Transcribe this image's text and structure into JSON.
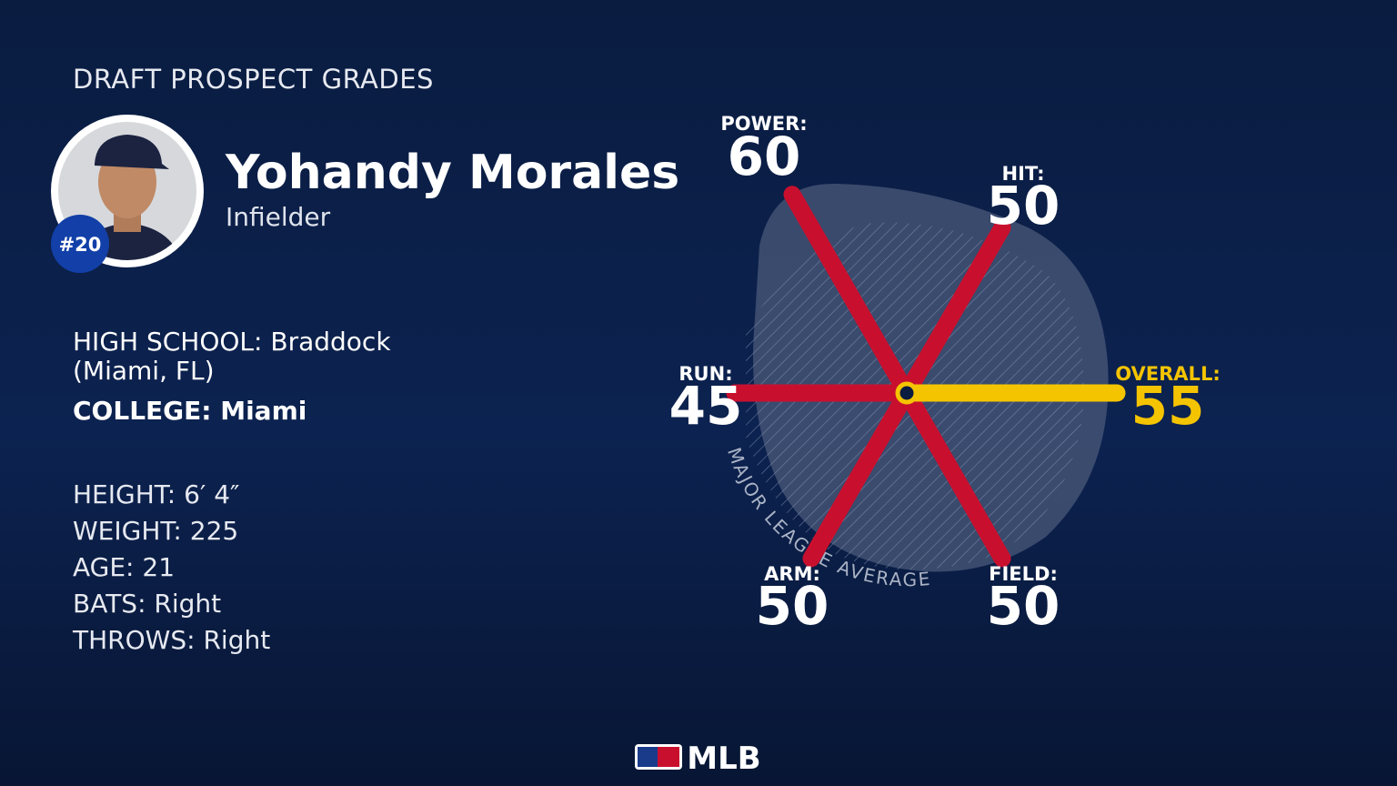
{
  "header": "DRAFT PROSPECT GRADES",
  "player": {
    "name": "Yohandy Morales",
    "position": "Infielder",
    "rank": "#20"
  },
  "school": [
    {
      "label": "HIGH SCHOOL:",
      "value": "Braddock (Miami, FL)"
    },
    {
      "label": "COLLEGE:",
      "value": "Miami"
    }
  ],
  "bio": [
    {
      "label": "HEIGHT:",
      "value": "6′ 4″"
    },
    {
      "label": "WEIGHT:",
      "value": 225
    },
    {
      "label": "AGE:",
      "value": 21
    },
    {
      "label": "BATS:",
      "value": "Right"
    },
    {
      "label": "THROWS:",
      "value": "Right"
    }
  ],
  "grades": [
    {
      "label": "POWER:",
      "value": 60,
      "color": "#c8102e"
    },
    {
      "label": "HIT:",
      "value": 50,
      "color": "#c8102e"
    },
    {
      "label": "RUN:",
      "value": 45,
      "color": "#c8102e"
    },
    {
      "label": "OVERALL:",
      "value": 55,
      "color": "#f5c400"
    },
    {
      "label": "ARM:",
      "value": 50,
      "color": "#c8102e"
    },
    {
      "label": "FIELD:",
      "value": 50,
      "color": "#c8102e"
    }
  ],
  "average_label": "MAJOR LEAGUE AVERAGE",
  "logo": "MLB"
}
